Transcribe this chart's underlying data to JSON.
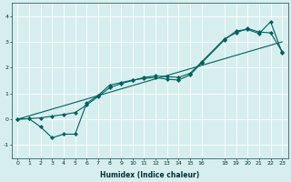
{
  "xlabel": "Humidex (Indice chaleur)",
  "xlim": [
    -0.5,
    23.5
  ],
  "ylim": [
    -1.5,
    4.5
  ],
  "yticks": [
    -1,
    0,
    1,
    2,
    3,
    4
  ],
  "xticks": [
    0,
    1,
    2,
    3,
    4,
    5,
    6,
    7,
    8,
    9,
    10,
    11,
    12,
    13,
    14,
    15,
    16,
    18,
    19,
    20,
    21,
    22,
    23
  ],
  "bg_color": "#d6eeee",
  "grid_color": "#b8d8d8",
  "line_color": "#006060",
  "curve1_x": [
    0,
    1,
    2,
    3,
    4,
    5,
    6,
    7,
    8,
    9,
    10,
    11,
    12,
    13,
    14,
    15,
    16,
    18,
    19,
    20,
    21,
    22,
    23
  ],
  "curve1_y": [
    0.0,
    0.02,
    -0.3,
    -0.72,
    -0.58,
    -0.58,
    0.62,
    0.92,
    1.32,
    1.42,
    1.52,
    1.58,
    1.62,
    1.55,
    1.52,
    1.72,
    2.18,
    3.08,
    3.42,
    3.48,
    3.32,
    3.78,
    2.58
  ],
  "curve2_x": [
    0,
    1,
    2,
    3,
    4,
    5,
    6,
    7,
    8,
    9,
    10,
    11,
    12,
    13,
    14,
    15,
    16,
    18,
    19,
    20,
    21,
    22,
    23
  ],
  "curve2_y": [
    0.0,
    0.02,
    0.05,
    0.12,
    0.18,
    0.26,
    0.55,
    0.88,
    1.22,
    1.38,
    1.5,
    1.62,
    1.68,
    1.65,
    1.62,
    1.78,
    2.22,
    3.12,
    3.35,
    3.52,
    3.38,
    3.35,
    2.62
  ],
  "curve3_x": [
    0,
    23
  ],
  "curve3_y": [
    0.0,
    3.0
  ],
  "marker": "D",
  "markersize": 2.2,
  "lw": 0.8
}
